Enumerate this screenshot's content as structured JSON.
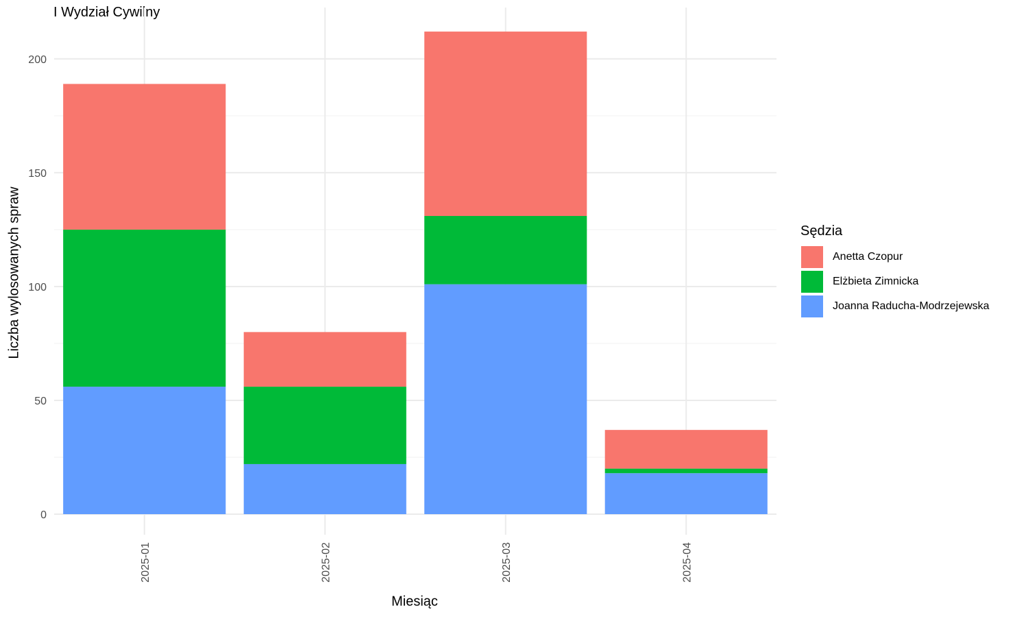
{
  "chart_data": {
    "type": "bar",
    "stacked": true,
    "title": "I Wydział Cywilny",
    "xlabel": "Miesiąc",
    "ylabel": "Liczba wylosowanych spraw",
    "categories": [
      "2025-01",
      "2025-02",
      "2025-03",
      "2025-04"
    ],
    "yticks": [
      0,
      50,
      100,
      150,
      200
    ],
    "ylim": [
      0,
      215
    ],
    "grid": true,
    "legend_title": "Sędzia",
    "legend_position": "right",
    "series": [
      {
        "name": "Joanna Raducha-Modrzejewska",
        "color": "#619CFF",
        "values": [
          56,
          22,
          101,
          18
        ]
      },
      {
        "name": "Elżbieta Zimnicka",
        "color": "#00BA38",
        "values": [
          69,
          34,
          30,
          2
        ]
      },
      {
        "name": "Anetta Czopur",
        "color": "#F8766D",
        "values": [
          64,
          24,
          81,
          17
        ]
      }
    ],
    "legend_order": [
      "Anetta Czopur",
      "Elżbieta Zimnicka",
      "Joanna Raducha-Modrzejewska"
    ]
  }
}
